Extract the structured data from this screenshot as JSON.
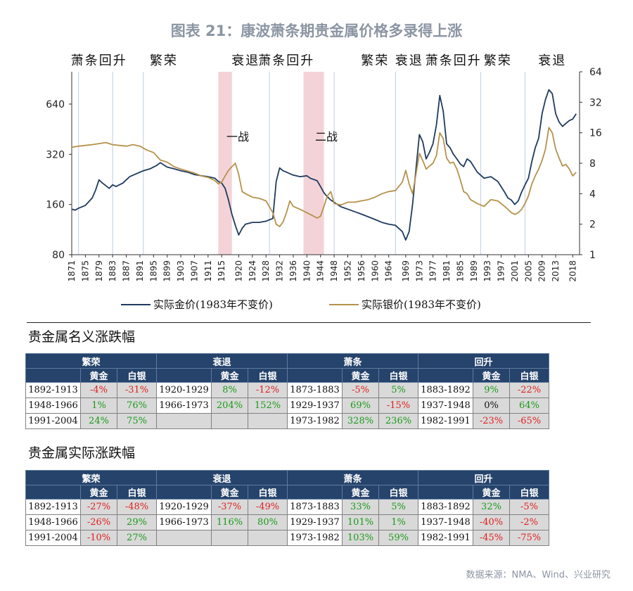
{
  "title": "图表 21：康波萧条期贵金属价格多录得上涨",
  "chart_data": {
    "type": "line",
    "x_range": [
      1871,
      2020
    ],
    "x_tick_labels": [
      "1871",
      "1875",
      "1879",
      "1883",
      "1887",
      "1891",
      "1895",
      "1899",
      "1903",
      "1907",
      "1911",
      "1915",
      "1920",
      "1924",
      "1928",
      "1932",
      "1936",
      "1940",
      "1944",
      "1948",
      "1952",
      "1956",
      "1960",
      "1964",
      "1969",
      "1973",
      "1977",
      "1981",
      "1985",
      "1989",
      "1993",
      "1997",
      "2001",
      "2005",
      "2009",
      "2013",
      "2018"
    ],
    "y_left": {
      "scale": "log2",
      "min": 80,
      "max": 1000,
      "ticks": [
        80,
        160,
        320,
        640
      ],
      "tick_labels": [
        "80",
        "160",
        "320",
        "640"
      ]
    },
    "y_right": {
      "scale": "log2",
      "min": 1,
      "max": 64,
      "ticks": [
        1,
        2,
        4,
        8,
        16,
        32,
        64
      ],
      "tick_labels": [
        "1",
        "2",
        "4",
        "8",
        "16",
        "32",
        "64"
      ]
    },
    "phase_labels": [
      {
        "text": "萧条回升",
        "x": 1879
      },
      {
        "text": "繁荣",
        "x": 1898
      },
      {
        "text": "衰退",
        "x": 1922
      },
      {
        "text": "萧条回升",
        "x": 1934
      },
      {
        "text": "繁荣",
        "x": 1960
      },
      {
        "text": "衰退",
        "x": 1970
      },
      {
        "text": "萧条回升",
        "x": 1983
      },
      {
        "text": "繁荣",
        "x": 1996
      },
      {
        "text": "衰退",
        "x": 2012
      }
    ],
    "phase_boundaries": [
      1873,
      1883,
      1892,
      1929,
      1948,
      1966,
      1991,
      2004
    ],
    "war_bands": [
      {
        "label": "一战",
        "from": 1914,
        "to": 1918
      },
      {
        "label": "二战",
        "from": 1939,
        "to": 1945
      }
    ],
    "series": [
      {
        "name": "实际金价(1983年不变价)",
        "axis": "left",
        "color": "#1f3a5f",
        "x": [
          1871,
          1872,
          1873,
          1875,
          1877,
          1878,
          1879,
          1880,
          1882,
          1883,
          1884,
          1886,
          1888,
          1890,
          1892,
          1894,
          1896,
          1897,
          1899,
          1901,
          1903,
          1905,
          1907,
          1909,
          1911,
          1913,
          1914,
          1915,
          1916,
          1917,
          1918,
          1919,
          1920,
          1921,
          1922,
          1924,
          1926,
          1928,
          1930,
          1931,
          1932,
          1933,
          1934,
          1935,
          1936,
          1938,
          1940,
          1941,
          1943,
          1944,
          1945,
          1946,
          1947,
          1948,
          1950,
          1952,
          1954,
          1956,
          1958,
          1960,
          1962,
          1964,
          1966,
          1968,
          1969,
          1970,
          1971,
          1972,
          1973,
          1974,
          1975,
          1976,
          1977,
          1978,
          1979,
          1980,
          1981,
          1982,
          1983,
          1984,
          1985,
          1986,
          1987,
          1988,
          1990,
          1992,
          1994,
          1996,
          1998,
          1999,
          2000,
          2001,
          2002,
          2003,
          2004,
          2005,
          2006,
          2007,
          2008,
          2009,
          2010,
          2011,
          2012,
          2013,
          2014,
          2015,
          2016,
          2017,
          2018,
          2019
        ],
        "y": [
          150,
          148,
          152,
          158,
          175,
          195,
          225,
          215,
          200,
          210,
          205,
          215,
          235,
          245,
          255,
          262,
          275,
          285,
          268,
          262,
          255,
          250,
          242,
          238,
          235,
          230,
          220,
          215,
          200,
          170,
          140,
          120,
          105,
          115,
          122,
          125,
          125,
          127,
          132,
          220,
          265,
          255,
          250,
          245,
          240,
          235,
          238,
          230,
          222,
          205,
          188,
          178,
          170,
          165,
          155,
          150,
          145,
          140,
          135,
          130,
          125,
          122,
          120,
          110,
          98,
          110,
          160,
          260,
          420,
          380,
          300,
          330,
          370,
          480,
          720,
          580,
          370,
          350,
          320,
          300,
          280,
          270,
          300,
          290,
          250,
          230,
          235,
          220,
          190,
          175,
          170,
          160,
          168,
          190,
          210,
          230,
          290,
          350,
          400,
          560,
          680,
          780,
          740,
          560,
          500,
          470,
          490,
          510,
          520,
          560
        ]
      },
      {
        "name": "实际银价(1983年不变价)",
        "axis": "right",
        "color": "#b5924c",
        "x": [
          1871,
          1873,
          1875,
          1877,
          1879,
          1881,
          1883,
          1885,
          1887,
          1889,
          1891,
          1893,
          1895,
          1897,
          1899,
          1901,
          1903,
          1905,
          1907,
          1909,
          1911,
          1913,
          1914,
          1915,
          1916,
          1917,
          1918,
          1919,
          1920,
          1921,
          1922,
          1924,
          1926,
          1928,
          1930,
          1931,
          1932,
          1933,
          1934,
          1935,
          1936,
          1938,
          1940,
          1942,
          1943,
          1944,
          1945,
          1946,
          1947,
          1948,
          1950,
          1952,
          1954,
          1956,
          1958,
          1960,
          1962,
          1964,
          1966,
          1968,
          1969,
          1970,
          1971,
          1972,
          1973,
          1974,
          1975,
          1976,
          1977,
          1978,
          1979,
          1980,
          1981,
          1982,
          1983,
          1984,
          1985,
          1986,
          1987,
          1988,
          1990,
          1992,
          1994,
          1996,
          1998,
          1999,
          2000,
          2001,
          2002,
          2003,
          2004,
          2005,
          2006,
          2007,
          2008,
          2009,
          2010,
          2011,
          2012,
          2013,
          2014,
          2015,
          2016,
          2017,
          2018,
          2019
        ],
        "y": [
          11.5,
          11.8,
          12.0,
          12.2,
          12.5,
          12.8,
          12.2,
          12.0,
          11.8,
          12.2,
          11.8,
          10.8,
          10.2,
          8.6,
          8.2,
          7.4,
          7.0,
          6.7,
          6.4,
          6.0,
          5.8,
          5.4,
          5.0,
          5.2,
          6.0,
          6.8,
          7.4,
          8.0,
          6.2,
          4.2,
          4.0,
          3.7,
          3.6,
          3.4,
          2.6,
          2.0,
          1.9,
          2.1,
          2.6,
          3.4,
          3.0,
          2.8,
          2.6,
          2.4,
          2.3,
          2.4,
          3.0,
          3.8,
          4.2,
          3.2,
          3.1,
          3.3,
          3.3,
          3.4,
          3.5,
          3.7,
          4.0,
          4.2,
          4.3,
          5.2,
          6.8,
          5.0,
          4.0,
          6.2,
          10.0,
          8.5,
          7.0,
          7.5,
          8.0,
          9.5,
          16.0,
          14.0,
          9.0,
          8.0,
          8.2,
          7.0,
          5.5,
          4.2,
          4.0,
          3.5,
          3.2,
          3.0,
          3.5,
          3.4,
          3.0,
          2.8,
          2.6,
          2.5,
          2.6,
          2.8,
          3.2,
          3.8,
          5.0,
          6.0,
          7.0,
          8.5,
          11.0,
          18.0,
          16.0,
          11.0,
          9.0,
          7.5,
          7.8,
          7.0,
          6.0,
          6.5
        ]
      }
    ],
    "legend_position": "bottom"
  },
  "nominal": {
    "title": "贵金属名义涨跌幅",
    "groups": [
      {
        "name": "繁荣",
        "rows": [
          [
            "1892-1913",
            "-4%",
            "-31%"
          ],
          [
            "1948-1966",
            "1%",
            "76%"
          ],
          [
            "1991-2004",
            "24%",
            "75%"
          ]
        ]
      },
      {
        "name": "衰退",
        "rows": [
          [
            "1920-1929",
            "8%",
            "-12%"
          ],
          [
            "1966-1973",
            "204%",
            "152%"
          ],
          [
            "",
            "",
            ""
          ]
        ]
      },
      {
        "name": "萧条",
        "rows": [
          [
            "1873-1883",
            "-5%",
            "5%"
          ],
          [
            "1929-1937",
            "69%",
            "-15%"
          ],
          [
            "1973-1982",
            "328%",
            "236%"
          ]
        ]
      },
      {
        "name": "回升",
        "rows": [
          [
            "1883-1892",
            "9%",
            "-22%"
          ],
          [
            "1937-1948",
            "0%",
            "64%"
          ],
          [
            "1982-1991",
            "-23%",
            "-65%"
          ]
        ]
      }
    ]
  },
  "real": {
    "title": "贵金属实际涨跌幅",
    "groups": [
      {
        "name": "繁荣",
        "rows": [
          [
            "1892-1913",
            "-27%",
            "-48%"
          ],
          [
            "1948-1966",
            "-26%",
            "29%"
          ],
          [
            "1991-2004",
            "-10%",
            "27%"
          ]
        ]
      },
      {
        "name": "衰退",
        "rows": [
          [
            "1920-1929",
            "-37%",
            "-49%"
          ],
          [
            "1966-1973",
            "116%",
            "80%"
          ],
          [
            "",
            "",
            ""
          ]
        ]
      },
      {
        "name": "萧条",
        "rows": [
          [
            "1873-1883",
            "33%",
            "5%"
          ],
          [
            "1929-1937",
            "101%",
            "1%"
          ],
          [
            "1973-1982",
            "103%",
            "59%"
          ]
        ]
      },
      {
        "name": "回升",
        "rows": [
          [
            "1883-1892",
            "32%",
            "-5%"
          ],
          [
            "1937-1948",
            "-40%",
            "-2%"
          ],
          [
            "1982-1991",
            "-45%",
            "-75%"
          ]
        ]
      }
    ]
  },
  "table_headers": {
    "gold": "黄金",
    "silver": "白银"
  },
  "colors": {
    "header_bg": "#25436b",
    "positive": "#1a9a1a",
    "negative": "#e02020",
    "cell_bg": "#d9d9d9",
    "war_band": "#f3d3d7"
  },
  "source": "数据来源：NMA、Wind、兴业研究"
}
